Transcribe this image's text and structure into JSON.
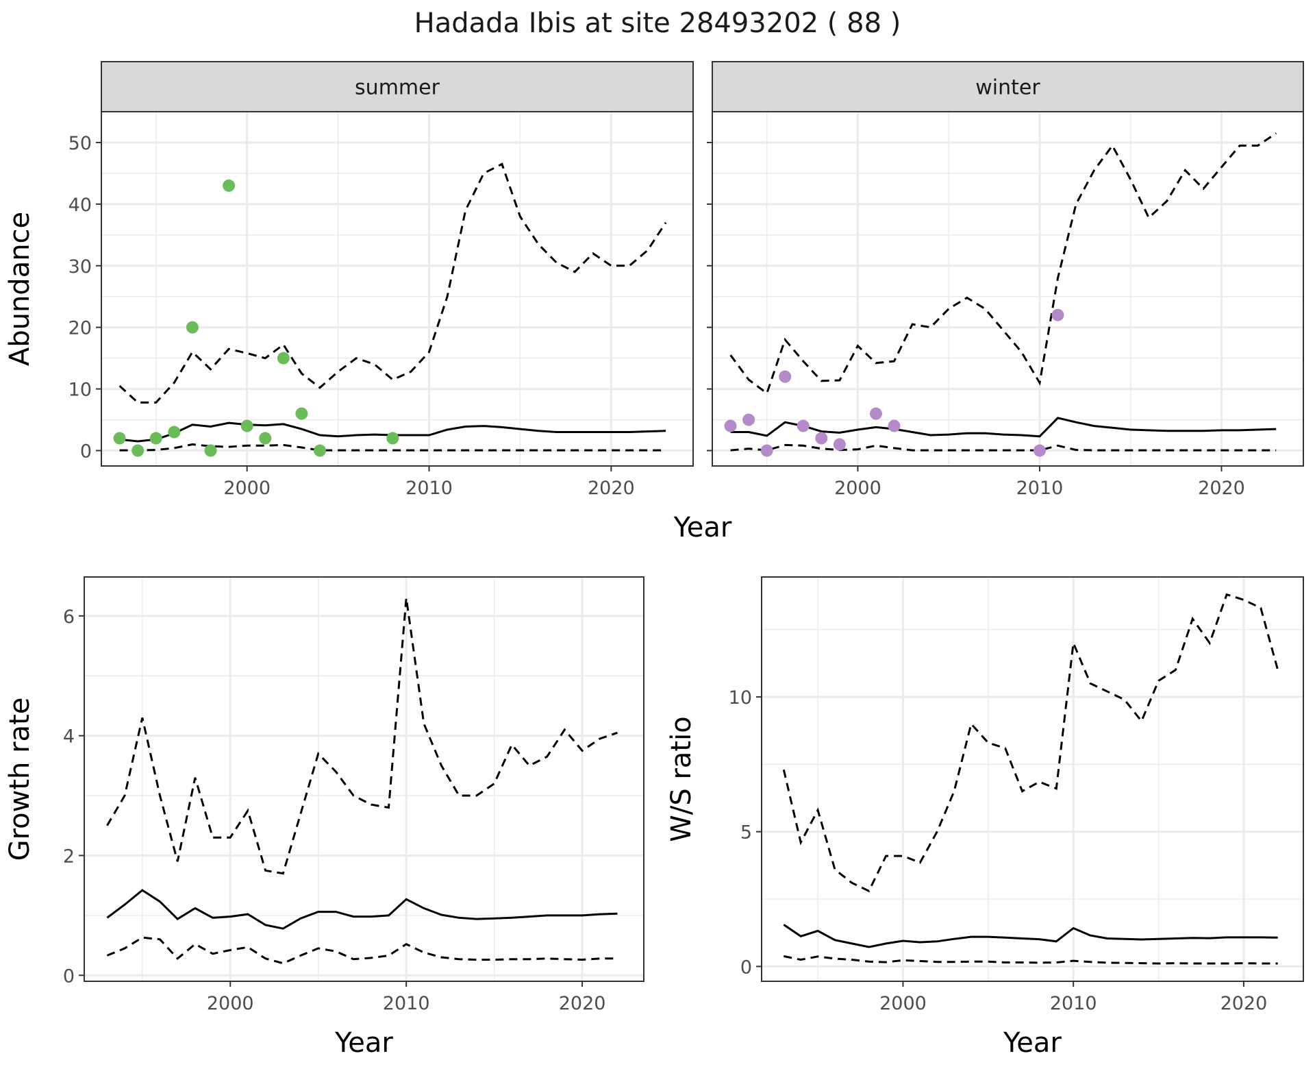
{
  "title": "Hadada Ibis at site 28493202 ( 88 )",
  "colors": {
    "summer_points": "#6bbb58",
    "winter_points": "#b48ac8",
    "lines": "#000000",
    "strip_bg": "#d9d9d9"
  },
  "chart_data": [
    {
      "type": "line",
      "facet": "summer",
      "xlabel": "Year",
      "ylabel": "Abundance",
      "xlim": [
        1992,
        2024.5
      ],
      "ylim": [
        -2.5,
        55
      ],
      "xticks": [
        2000,
        2010,
        2020
      ],
      "yticks": [
        0,
        10,
        20,
        30,
        40,
        50
      ],
      "grid": true,
      "x": [
        1993,
        1994,
        1995,
        1996,
        1997,
        1998,
        1999,
        2000,
        2001,
        2002,
        2003,
        2004,
        2005,
        2006,
        2007,
        2008,
        2009,
        2010,
        2011,
        2012,
        2013,
        2014,
        2015,
        2016,
        2017,
        2018,
        2019,
        2020,
        2021,
        2022,
        2023
      ],
      "series": [
        {
          "role": "mean",
          "style": "solid",
          "values": [
            1.8,
            1.5,
            1.8,
            2.8,
            4.2,
            3.9,
            4.5,
            4.2,
            4.1,
            4.3,
            3.5,
            2.5,
            2.3,
            2.5,
            2.6,
            2.5,
            2.5,
            2.5,
            3.4,
            3.9,
            4.0,
            3.8,
            3.5,
            3.2,
            3.0,
            3.0,
            3.0,
            3.0,
            3.0,
            3.1,
            3.2
          ]
        },
        {
          "role": "upper",
          "style": "dashed",
          "values": [
            10.5,
            7.8,
            7.8,
            11.0,
            16.0,
            13.2,
            16.5,
            15.8,
            15.0,
            17.2,
            12.5,
            10.2,
            12.8,
            15.0,
            14.0,
            11.5,
            12.8,
            16.0,
            25.0,
            39.0,
            45.0,
            46.5,
            38.0,
            33.5,
            30.5,
            29.0,
            32.0,
            30.0,
            30.0,
            32.5,
            37.0
          ]
        },
        {
          "role": "lower",
          "style": "dashed",
          "values": [
            0.05,
            0.05,
            0.1,
            0.4,
            1.0,
            0.7,
            0.6,
            0.8,
            0.8,
            0.9,
            0.5,
            0.05,
            0.05,
            0.05,
            0.05,
            0.05,
            0.05,
            0.05,
            0.05,
            0.05,
            0.05,
            0.05,
            0.05,
            0.05,
            0.05,
            0.05,
            0.05,
            0.05,
            0.05,
            0.05,
            0.05
          ]
        }
      ],
      "points": {
        "x": [
          1993,
          1994,
          1995,
          1996,
          1997,
          1998,
          1999,
          2000,
          2001,
          2002,
          2003,
          2004,
          2008
        ],
        "y": [
          2,
          0,
          2,
          3,
          20,
          0,
          43,
          4,
          2,
          15,
          6,
          0,
          2
        ]
      }
    },
    {
      "type": "line",
      "facet": "winter",
      "xlabel": "Year",
      "xlim": [
        1992,
        2024.5
      ],
      "ylim": [
        -2.5,
        55
      ],
      "xticks": [
        2000,
        2010,
        2020
      ],
      "grid": true,
      "x": [
        1993,
        1994,
        1995,
        1996,
        1997,
        1998,
        1999,
        2000,
        2001,
        2002,
        2003,
        2004,
        2005,
        2006,
        2007,
        2008,
        2009,
        2010,
        2011,
        2012,
        2013,
        2014,
        2015,
        2016,
        2017,
        2018,
        2019,
        2020,
        2021,
        2022,
        2023
      ],
      "series": [
        {
          "role": "mean",
          "style": "solid",
          "values": [
            3.0,
            3.0,
            2.4,
            4.6,
            4.0,
            3.1,
            2.9,
            3.4,
            3.8,
            3.5,
            3.0,
            2.5,
            2.6,
            2.8,
            2.8,
            2.6,
            2.5,
            2.3,
            5.3,
            4.6,
            4.0,
            3.7,
            3.4,
            3.3,
            3.2,
            3.2,
            3.2,
            3.3,
            3.3,
            3.4,
            3.5
          ]
        },
        {
          "role": "upper",
          "style": "dashed",
          "values": [
            15.5,
            11.5,
            9.3,
            18.0,
            14.5,
            11.3,
            11.4,
            17.0,
            14.2,
            14.5,
            20.5,
            20.0,
            23.0,
            24.8,
            23.0,
            19.5,
            16.0,
            11.0,
            28.0,
            40.0,
            45.5,
            49.5,
            44.0,
            37.8,
            40.5,
            45.5,
            42.5,
            46.0,
            49.5,
            49.5,
            51.5
          ]
        },
        {
          "role": "lower",
          "style": "dashed",
          "values": [
            0.05,
            0.3,
            0.05,
            0.9,
            0.8,
            0.3,
            0.1,
            0.2,
            0.8,
            0.4,
            0.05,
            0.05,
            0.05,
            0.05,
            0.05,
            0.05,
            0.05,
            0.05,
            0.8,
            0.1,
            0.05,
            0.05,
            0.05,
            0.05,
            0.05,
            0.05,
            0.05,
            0.05,
            0.05,
            0.05,
            0.05
          ]
        }
      ],
      "points": {
        "x": [
          1993,
          1994,
          1995,
          1996,
          1997,
          1998,
          1999,
          2001,
          2002,
          2010,
          2011
        ],
        "y": [
          4,
          5,
          0,
          12,
          4,
          2,
          1,
          6,
          4,
          0,
          22
        ]
      }
    },
    {
      "type": "line",
      "xlabel": "Year",
      "ylabel": "Growth rate",
      "xlim": [
        1991.7,
        2023.5
      ],
      "ylim": [
        -0.1,
        6.65
      ],
      "xticks": [
        2000,
        2010,
        2020
      ],
      "yticks": [
        0,
        2,
        4,
        6
      ],
      "grid": true,
      "x": [
        1993,
        1994,
        1995,
        1996,
        1997,
        1998,
        1999,
        2000,
        2001,
        2002,
        2003,
        2004,
        2005,
        2006,
        2007,
        2008,
        2009,
        2010,
        2011,
        2012,
        2013,
        2014,
        2015,
        2016,
        2017,
        2018,
        2019,
        2020,
        2021,
        2022
      ],
      "series": [
        {
          "role": "mean",
          "style": "solid",
          "values": [
            0.96,
            1.18,
            1.42,
            1.23,
            0.94,
            1.12,
            0.96,
            0.98,
            1.02,
            0.84,
            0.78,
            0.95,
            1.06,
            1.06,
            0.98,
            0.98,
            1.0,
            1.27,
            1.12,
            1.01,
            0.96,
            0.94,
            0.95,
            0.96,
            0.98,
            1.0,
            1.0,
            1.0,
            1.02,
            1.03
          ]
        },
        {
          "role": "upper",
          "style": "dashed",
          "values": [
            2.5,
            3.0,
            4.3,
            3.0,
            1.9,
            3.3,
            2.3,
            2.3,
            2.75,
            1.75,
            1.7,
            2.7,
            3.7,
            3.4,
            3.0,
            2.85,
            2.8,
            6.3,
            4.2,
            3.5,
            3.0,
            3.0,
            3.2,
            3.85,
            3.5,
            3.65,
            4.1,
            3.75,
            3.95,
            4.05
          ]
        },
        {
          "role": "lower",
          "style": "dashed",
          "values": [
            0.33,
            0.45,
            0.63,
            0.6,
            0.28,
            0.52,
            0.36,
            0.42,
            0.47,
            0.28,
            0.2,
            0.33,
            0.45,
            0.4,
            0.27,
            0.29,
            0.33,
            0.52,
            0.38,
            0.3,
            0.27,
            0.26,
            0.26,
            0.27,
            0.27,
            0.28,
            0.27,
            0.26,
            0.28,
            0.28
          ]
        }
      ]
    },
    {
      "type": "line",
      "xlabel": "Year",
      "ylabel": "W/S ratio",
      "xlim": [
        1991.7,
        2023.5
      ],
      "ylim": [
        -0.55,
        14.45
      ],
      "xticks": [
        2000,
        2010,
        2020
      ],
      "yticks": [
        0,
        5,
        10
      ],
      "grid": true,
      "x": [
        1993,
        1994,
        1995,
        1996,
        1997,
        1998,
        1999,
        2000,
        2001,
        2002,
        2003,
        2004,
        2005,
        2006,
        2007,
        2008,
        2009,
        2010,
        2011,
        2012,
        2013,
        2014,
        2015,
        2016,
        2017,
        2018,
        2019,
        2020,
        2021,
        2022
      ],
      "series": [
        {
          "role": "mean",
          "style": "solid",
          "values": [
            1.55,
            1.12,
            1.32,
            0.98,
            0.85,
            0.72,
            0.85,
            0.95,
            0.9,
            0.93,
            1.02,
            1.1,
            1.1,
            1.07,
            1.04,
            1.01,
            0.93,
            1.42,
            1.15,
            1.04,
            1.02,
            1.0,
            1.02,
            1.04,
            1.06,
            1.05,
            1.08,
            1.08,
            1.08,
            1.07
          ]
        },
        {
          "role": "upper",
          "style": "dashed",
          "values": [
            7.3,
            4.6,
            5.8,
            3.6,
            3.1,
            2.8,
            4.1,
            4.1,
            3.85,
            5.0,
            6.5,
            9.0,
            8.3,
            8.1,
            6.5,
            6.85,
            6.6,
            12.0,
            10.5,
            10.2,
            9.9,
            9.1,
            10.6,
            11.0,
            12.9,
            12.0,
            13.8,
            13.6,
            13.3,
            11.0
          ]
        },
        {
          "role": "lower",
          "style": "dashed",
          "values": [
            0.38,
            0.25,
            0.37,
            0.29,
            0.25,
            0.18,
            0.16,
            0.23,
            0.2,
            0.17,
            0.17,
            0.18,
            0.18,
            0.15,
            0.15,
            0.14,
            0.15,
            0.21,
            0.17,
            0.14,
            0.13,
            0.12,
            0.11,
            0.12,
            0.11,
            0.11,
            0.11,
            0.12,
            0.11,
            0.11
          ]
        }
      ]
    }
  ]
}
